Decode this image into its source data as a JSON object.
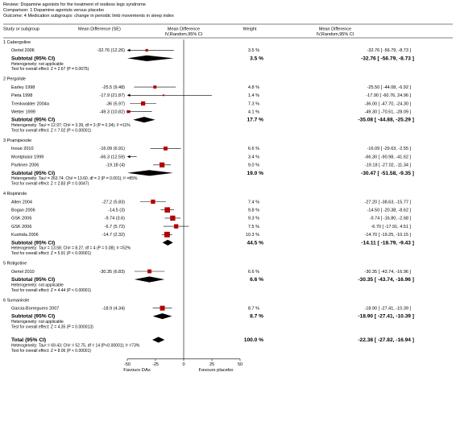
{
  "header": {
    "review": "Review:  Dopamine agonists for the treatment of restless legs syndrome",
    "comparison": "Comparison:  1 Dopamine agonists versus placebo",
    "outcome": "Outcome:  4 Medication subgroups: change in periodic limb movements in sleep index"
  },
  "columns": {
    "study": "Study or subgroup",
    "md_se": "Mean Difference (SE)",
    "md_plot_1": "Mean Difference",
    "md_plot_2": "IV,Random,95% CI",
    "weight": "Weight",
    "md_ci_1": "Mean Difference",
    "md_ci_2": "IV,Random,95% CI"
  },
  "axis": {
    "ticks": [
      "-50",
      "-25",
      "0",
      "25",
      "50"
    ],
    "favours_left": "Favours DAs",
    "favours_right": "Favours placebo"
  },
  "chart_data": {
    "type": "forest",
    "xlim": [
      -50,
      50
    ],
    "xticks": [
      -50,
      -25,
      0,
      25,
      50
    ],
    "subgroups": [
      {
        "title": "1 Cabergoline",
        "studies": [
          {
            "name": "Oertel 2006",
            "se_text": "-32.76 (12.26)",
            "md": -32.76,
            "lo": -56.79,
            "hi": -8.73,
            "weight": "3.5 %",
            "ci_text": "-32.76 [ -56.79, -8.73 ]"
          }
        ],
        "subtotal": {
          "label": "Subtotal (95% CI)",
          "md": -32.76,
          "lo": -56.79,
          "hi": -8.73,
          "weight": "3.5 %",
          "ci_text": "-32.76 [ -56.79, -8.73 ]"
        },
        "heterogeneity": "Heterogeneity: not applicable",
        "overall": "Test for overall effect: Z = 2.67 (P = 0.0075)"
      },
      {
        "title": "2 Pergolide",
        "studies": [
          {
            "name": "Earley 1998",
            "se_text": "-25.5 (9.48)",
            "md": -25.5,
            "lo": -44.08,
            "hi": -6.92,
            "weight": "4.8 %",
            "ci_text": "-25.50 [ -44.08, -6.92 ]"
          },
          {
            "name": "Pieta 1998",
            "se_text": "-17.9 (21.87)",
            "md": -17.9,
            "lo": -60.76,
            "hi": 24.96,
            "weight": "1.4 %",
            "ci_text": "-17.90 [ -60.76, 24.96 ]"
          },
          {
            "name": "Trenkwalder 2004a",
            "se_text": "-36 (5.97)",
            "md": -36.0,
            "lo": -47.7,
            "hi": -24.3,
            "weight": "7.3 %",
            "ci_text": "-36.00 [ -47.70, -24.30 ]"
          },
          {
            "name": "Wetter 1999",
            "se_text": "-49.3 (10.82)",
            "md": -49.3,
            "lo": -70.51,
            "hi": -28.09,
            "weight": "4.1 %",
            "ci_text": "-49.30 [ -70.51, -28.09 ]"
          }
        ],
        "subtotal": {
          "label": "Subtotal (95% CI)",
          "md": -35.08,
          "lo": -44.88,
          "hi": -25.29,
          "weight": "17.7 %",
          "ci_text": "-35.08 [ -44.88, -25.29 ]"
        },
        "heterogeneity": "Heterogeneity: Tau² = 12.97; Chi² = 3.39, df = 3 (P = 0.34); I² =11%",
        "overall": "Test for overall effect: Z = 7.02 (P < 0.00001)"
      },
      {
        "title": "3 Pramipexole",
        "studies": [
          {
            "name": "Inoue 2010",
            "se_text": "-16.09 (6.91)",
            "md": -16.09,
            "lo": -29.63,
            "hi": -2.55,
            "weight": "6.6 %",
            "ci_text": "-16.09 [ -29.63, -2.55 ]"
          },
          {
            "name": "Montplaisir 1999",
            "se_text": "-66.3 (12.59)",
            "md": -66.3,
            "lo": -90.98,
            "hi": -41.62,
            "weight": "3.4 %",
            "ci_text": "-66.30 [ -90.98, -41.62 ]"
          },
          {
            "name": "Partinen 2006",
            "se_text": "-19.18 (4)",
            "md": -19.18,
            "lo": -27.02,
            "hi": -11.34,
            "weight": "9.0 %",
            "ci_text": "-19.18 [ -27.02, -11.34 ]"
          }
        ],
        "subtotal": {
          "label": "Subtotal (95% CI)",
          "md": -30.47,
          "lo": -51.58,
          "hi": -9.35,
          "weight": "19.0 %",
          "ci_text": "-30.47 [ -51.58, -9.35 ]"
        },
        "heterogeneity": "Heterogeneity: Tau² = 263.74; Chi² = 13.60, df = 2 (P = 0.001); I² =85%",
        "overall": "Test for overall effect: Z = 2.83 (P = 0.0047)"
      },
      {
        "title": "4 Ropinirole",
        "studies": [
          {
            "name": "Allen 2004",
            "se_text": "-27.2 (5.83)",
            "md": -27.2,
            "lo": -38.63,
            "hi": -15.77,
            "weight": "7.4 %",
            "ci_text": "-27.20 [ -38.63, -15.77 ]"
          },
          {
            "name": "Bogan 2006",
            "se_text": "-14.5 (3)",
            "md": -14.5,
            "lo": -20.38,
            "hi": -8.62,
            "weight": "9.8 %",
            "ci_text": "-14.50 [ -20.38, -8.62 ]"
          },
          {
            "name": "GSK 2006",
            "se_text": "-9.74 (3.6)",
            "md": -9.74,
            "lo": -16.8,
            "hi": -2.68,
            "weight": "9.3 %",
            "ci_text": "-9.74 [ -16.80, -2.68 ]"
          },
          {
            "name": "GSK 2006",
            "se_text": "-6.7 (5.72)",
            "md": -6.7,
            "lo": -17.91,
            "hi": 4.51,
            "weight": "7.5 %",
            "ci_text": "-6.70 [ -17.91, 4.51 ]"
          },
          {
            "name": "Kushida 2006",
            "se_text": "-14.7 (2.32)",
            "md": -14.7,
            "lo": -19.25,
            "hi": -10.15,
            "weight": "10.3 %",
            "ci_text": "-14.70 [ -19.25, -10.15 ]"
          }
        ],
        "subtotal": {
          "label": "Subtotal (95% CI)",
          "md": -14.11,
          "lo": -18.79,
          "hi": -9.43,
          "weight": "44.5 %",
          "ci_text": "-14.11 [ -18.79, -9.43 ]"
        },
        "heterogeneity": "Heterogeneity: Tau² = 13.58; Chi² = 8.27, df = 4 (P = 0.08); I² =52%",
        "overall": "Test for overall effect: Z = 5.91 (P < 0.00001)"
      },
      {
        "title": "5 Rotigotine",
        "studies": [
          {
            "name": "Oertel 2010",
            "se_text": "-30.35 (6.83)",
            "md": -30.35,
            "lo": -43.74,
            "hi": -16.96,
            "weight": "6.6 %",
            "ci_text": "-30.35 [ -43.74, -16.96 ]"
          }
        ],
        "subtotal": {
          "label": "Subtotal (95% CI)",
          "md": -30.35,
          "lo": -43.74,
          "hi": -16.96,
          "weight": "6.6 %",
          "ci_text": "-30.35 [ -43.74, -16.96 ]"
        },
        "heterogeneity": "Heterogeneity: not applicable",
        "overall": "Test for overall effect: Z = 4.44 (P < 0.00001)"
      },
      {
        "title": "6 Sumanirole",
        "studies": [
          {
            "name": "Garcia-Borreguero 2007",
            "se_text": "-18.9 (4.34)",
            "md": -18.9,
            "lo": -27.41,
            "hi": -10.39,
            "weight": "8.7 %",
            "ci_text": "-18.90 [ -27.41, -10.39 ]"
          }
        ],
        "subtotal": {
          "label": "Subtotal (95% CI)",
          "md": -18.9,
          "lo": -27.41,
          "hi": -10.39,
          "weight": "8.7 %",
          "ci_text": "-18.90 [ -27.41, -10.39 ]"
        },
        "heterogeneity": "Heterogeneity: not applicable",
        "overall": "Test for overall effect: Z = 4.35 (P = 0.000013)"
      }
    ],
    "total": {
      "label": "Total (95% CI)",
      "md": -22.38,
      "lo": -27.82,
      "hi": -16.94,
      "weight": "100.0 %",
      "ci_text": "-22.38 [ -27.82, -16.94 ]",
      "heterogeneity": "Heterogeneity: Tau² = 69.43; Chi² = 52.75, df = 14 (P<0.00001); I² =73%",
      "overall": "Test for overall effect: Z = 8.06 (P < 0.00001)"
    }
  }
}
